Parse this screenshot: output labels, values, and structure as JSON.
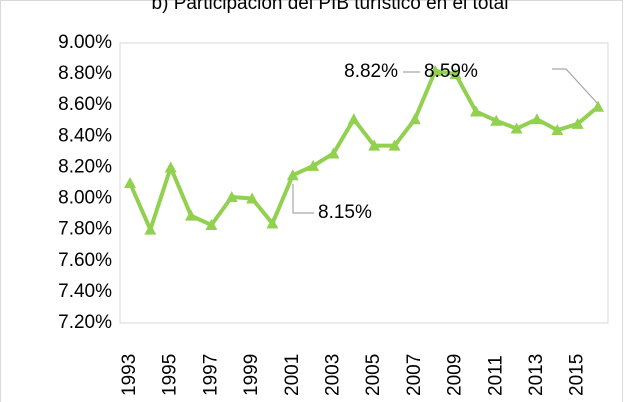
{
  "chart_data": {
    "type": "line",
    "title": "b) Participación del PIB turístico en el total",
    "categories": [
      1993,
      null,
      1995,
      null,
      1997,
      null,
      1999,
      null,
      2001,
      null,
      2003,
      null,
      2005,
      null,
      2007,
      null,
      2009,
      null,
      2011,
      null,
      2013,
      null,
      2015,
      null
    ],
    "series": [
      {
        "color": "#92d050",
        "values": [
          8.1,
          7.8,
          8.2,
          7.89,
          7.83,
          8.01,
          8.0,
          7.84,
          8.15,
          8.21,
          8.29,
          8.51,
          8.34,
          8.34,
          8.51,
          8.82,
          8.8,
          8.56,
          8.5,
          8.45,
          8.51,
          8.44,
          8.48,
          8.59
        ],
        "value_labels": [
          null,
          null,
          null,
          null,
          null,
          null,
          null,
          null,
          "8.15%",
          null,
          null,
          null,
          null,
          null,
          null,
          "8.82%",
          null,
          null,
          null,
          null,
          null,
          null,
          null,
          "8.59%"
        ]
      }
    ],
    "ylim": [
      7.2,
      9.0
    ],
    "yticks": [
      {
        "value": 7.2,
        "label": "7.20%"
      },
      {
        "value": 7.4,
        "label": "7.40%"
      },
      {
        "value": 7.6,
        "label": "7.60%"
      },
      {
        "value": 7.8,
        "label": "7.80%"
      },
      {
        "value": 8.0,
        "label": "8.00%"
      },
      {
        "value": 8.2,
        "label": "8.20%"
      },
      {
        "value": 8.4,
        "label": "8.40%"
      },
      {
        "value": 8.6,
        "label": "8.60%"
      },
      {
        "value": 8.8,
        "label": "8.80%"
      },
      {
        "value": 9.0,
        "label": "9.00%"
      }
    ]
  }
}
